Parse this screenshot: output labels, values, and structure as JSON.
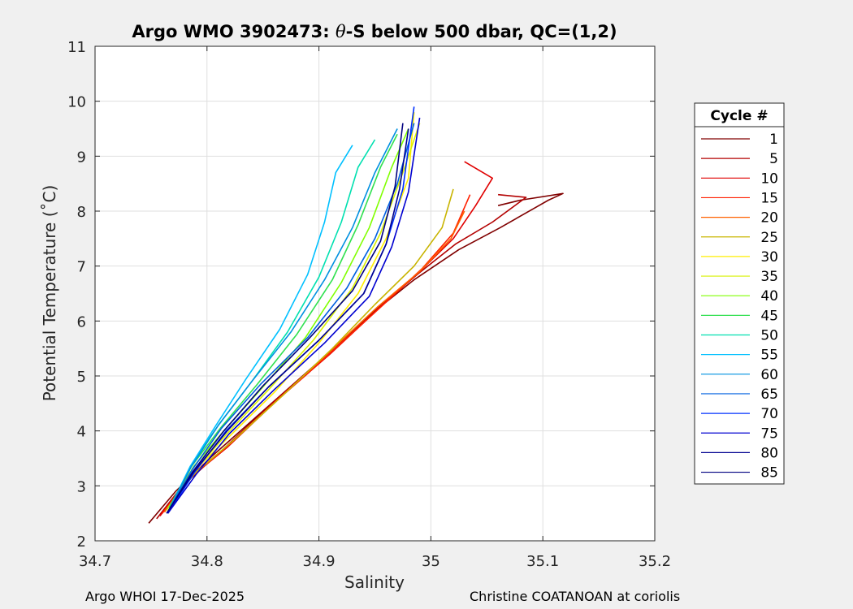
{
  "chart_data": {
    "type": "line",
    "title_prefix": "Argo WMO 3902473: ",
    "title_theta": "θ",
    "title_suffix": "-S below 500 dbar,  QC=(1,2)",
    "xlabel": "Salinity",
    "ylabel": "Potential Temperature (˚C)",
    "xlim": [
      34.7,
      35.2
    ],
    "ylim": [
      2,
      11
    ],
    "xticks": [
      34.7,
      34.8,
      34.9,
      35,
      35.1,
      35.2
    ],
    "xtick_labels": [
      "34.7",
      "34.8",
      "34.9",
      "35",
      "35.1",
      "35.2"
    ],
    "yticks": [
      2,
      3,
      4,
      5,
      6,
      7,
      8,
      9,
      10,
      11
    ],
    "ytick_labels": [
      "2",
      "3",
      "4",
      "5",
      "6",
      "7",
      "8",
      "9",
      "10",
      "11"
    ],
    "grid": true,
    "legend_title": "Cycle #",
    "legend_position": "outside-right",
    "series": [
      {
        "name": "1",
        "color": "#800000",
        "x": [
          34.748,
          34.772,
          34.805,
          34.852,
          34.902,
          34.945,
          34.985,
          35.025,
          35.062,
          35.105,
          35.118,
          35.08,
          35.06
        ],
        "y": [
          2.32,
          2.9,
          3.55,
          4.4,
          5.3,
          6.1,
          6.75,
          7.3,
          7.7,
          8.2,
          8.32,
          8.2,
          8.1
        ]
      },
      {
        "name": "5",
        "color": "#b30000",
        "x": [
          34.755,
          34.778,
          34.812,
          34.858,
          34.905,
          34.948,
          34.988,
          35.022,
          35.055,
          35.085,
          35.06
        ],
        "y": [
          2.4,
          3.0,
          3.62,
          4.5,
          5.35,
          6.15,
          6.85,
          7.4,
          7.8,
          8.25,
          8.3
        ]
      },
      {
        "name": "10",
        "color": "#e00000",
        "x": [
          34.758,
          34.782,
          34.818,
          34.862,
          34.91,
          34.952,
          34.99,
          35.02,
          35.04,
          35.055,
          35.03
        ],
        "y": [
          2.45,
          3.1,
          3.7,
          4.55,
          5.4,
          6.2,
          6.9,
          7.5,
          8.1,
          8.6,
          8.9
        ]
      },
      {
        "name": "15",
        "color": "#ff2000",
        "x": [
          34.76,
          34.785,
          34.82,
          34.865,
          34.912,
          34.955,
          34.992,
          35.02,
          35.035
        ],
        "y": [
          2.5,
          3.15,
          3.75,
          4.6,
          5.45,
          6.25,
          6.95,
          7.6,
          8.3
        ]
      },
      {
        "name": "20",
        "color": "#ff6000",
        "x": [
          34.762,
          34.788,
          34.822,
          34.866,
          34.91,
          34.952,
          34.99,
          35.018,
          35.03
        ],
        "y": [
          2.52,
          3.2,
          3.8,
          4.62,
          5.45,
          6.25,
          6.9,
          7.5,
          8.0
        ]
      },
      {
        "name": "25",
        "color": "#c8b400",
        "x": [
          34.763,
          34.79,
          34.825,
          34.868,
          34.912,
          34.95,
          34.985,
          35.01,
          35.02
        ],
        "y": [
          2.55,
          3.25,
          3.85,
          4.65,
          5.5,
          6.3,
          7.0,
          7.7,
          8.4
        ]
      },
      {
        "name": "30",
        "color": "#ffee00",
        "x": [
          34.765,
          34.79,
          34.82,
          34.86,
          34.9,
          34.935,
          34.96,
          34.98,
          34.985
        ],
        "y": [
          2.55,
          3.3,
          3.9,
          4.7,
          5.6,
          6.5,
          7.5,
          8.6,
          9.8
        ]
      },
      {
        "name": "35",
        "color": "#d8f000",
        "x": [
          34.765,
          34.79,
          34.818,
          34.855,
          34.895,
          34.93,
          34.955,
          34.975,
          34.99
        ],
        "y": [
          2.6,
          3.3,
          3.95,
          4.75,
          5.65,
          6.6,
          7.6,
          8.7,
          9.6
        ]
      },
      {
        "name": "40",
        "color": "#80ff00",
        "x": [
          34.766,
          34.788,
          34.815,
          34.85,
          34.888,
          34.92,
          34.945,
          34.965,
          34.98
        ],
        "y": [
          2.6,
          3.35,
          4.0,
          4.8,
          5.7,
          6.7,
          7.7,
          8.8,
          9.5
        ]
      },
      {
        "name": "45",
        "color": "#30e050",
        "x": [
          34.766,
          34.786,
          34.812,
          34.845,
          34.88,
          34.912,
          34.935,
          34.955,
          34.97
        ],
        "y": [
          2.6,
          3.35,
          4.05,
          4.85,
          5.75,
          6.75,
          7.75,
          8.8,
          9.4
        ]
      },
      {
        "name": "50",
        "color": "#00e0b0",
        "x": [
          34.767,
          34.785,
          34.81,
          34.84,
          34.872,
          34.9,
          34.92,
          34.935,
          34.95
        ],
        "y": [
          2.6,
          3.35,
          4.1,
          4.9,
          5.8,
          6.8,
          7.8,
          8.8,
          9.3
        ]
      },
      {
        "name": "55",
        "color": "#00c0ff",
        "x": [
          34.767,
          34.785,
          34.808,
          34.835,
          34.865,
          34.89,
          34.905,
          34.915,
          34.93
        ],
        "y": [
          2.6,
          3.35,
          4.1,
          4.95,
          5.85,
          6.85,
          7.8,
          8.7,
          9.2
        ]
      },
      {
        "name": "60",
        "color": "#0090e0",
        "x": [
          34.767,
          34.786,
          34.81,
          34.84,
          34.875,
          34.905,
          34.93,
          34.95,
          34.97
        ],
        "y": [
          2.6,
          3.35,
          4.1,
          4.9,
          5.8,
          6.75,
          7.7,
          8.7,
          9.5
        ]
      },
      {
        "name": "65",
        "color": "#0060e0",
        "x": [
          34.766,
          34.787,
          34.813,
          34.848,
          34.89,
          34.925,
          34.95,
          34.97,
          34.985
        ],
        "y": [
          2.55,
          3.3,
          4.05,
          4.85,
          5.7,
          6.6,
          7.5,
          8.5,
          9.6
        ]
      },
      {
        "name": "70",
        "color": "#0030ff",
        "x": [
          34.765,
          34.789,
          34.817,
          34.855,
          34.9,
          34.94,
          34.96,
          34.975,
          34.985
        ],
        "y": [
          2.5,
          3.25,
          4.0,
          4.8,
          5.65,
          6.5,
          7.4,
          8.4,
          9.9
        ]
      },
      {
        "name": "75",
        "color": "#0000d0",
        "x": [
          34.765,
          34.79,
          34.82,
          34.86,
          34.905,
          34.945,
          34.965,
          34.98,
          34.99
        ],
        "y": [
          2.5,
          3.2,
          3.95,
          4.75,
          5.6,
          6.45,
          7.35,
          8.35,
          9.7
        ]
      },
      {
        "name": "80",
        "color": "#000090",
        "x": [
          34.764,
          34.788,
          34.818,
          34.855,
          34.9,
          34.94,
          34.96,
          34.972,
          34.98
        ],
        "y": [
          2.5,
          3.25,
          4.0,
          4.8,
          5.65,
          6.5,
          7.4,
          8.4,
          9.5
        ]
      },
      {
        "name": "85",
        "color": "#000080",
        "x": [
          34.764,
          34.787,
          34.815,
          34.85,
          34.892,
          34.93,
          34.955,
          34.968,
          34.975
        ],
        "y": [
          2.5,
          3.25,
          4.0,
          4.82,
          5.7,
          6.55,
          7.45,
          8.45,
          9.6
        ]
      }
    ]
  },
  "footer": {
    "left": "Argo WHOI 17-Dec-2025",
    "right": "Christine COATANOAN at coriolis"
  }
}
